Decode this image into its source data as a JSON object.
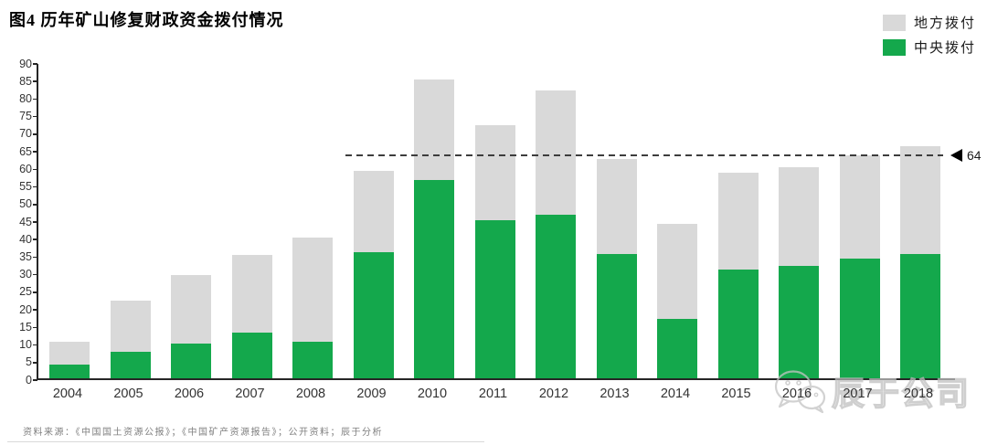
{
  "title": "图4 历年矿山修复财政资金拨付情况",
  "legend": {
    "items": [
      {
        "label": "地方拨付",
        "color": "#D9D9D9"
      },
      {
        "label": "中央拨付",
        "color": "#14A84C"
      }
    ]
  },
  "colors": {
    "local_gray": "#D9D9D9",
    "central_green": "#14A84C",
    "axis": "#262626",
    "reference_line": "#3d3d3d",
    "watermark_gray": "#bfbfbf"
  },
  "chart_data": {
    "type": "bar",
    "stacked": true,
    "title": "图4 历年矿山修复财政资金拨付情况",
    "categories": [
      "2004",
      "2005",
      "2006",
      "2007",
      "2008",
      "2009",
      "2010",
      "2011",
      "2012",
      "2013",
      "2014",
      "2015",
      "2016",
      "2017",
      "2018"
    ],
    "series": [
      {
        "name": "中央拨付",
        "color": "#14A84C",
        "values": [
          4,
          7.5,
          10,
          13,
          10.5,
          36,
          56.5,
          45,
          46.5,
          35.5,
          17,
          31,
          32,
          34,
          35.5
        ]
      },
      {
        "name": "地方拨付",
        "color": "#D9D9D9",
        "values": [
          6.5,
          14.5,
          19.5,
          22,
          29.5,
          23,
          28.5,
          27,
          35.5,
          27,
          27,
          27.5,
          28,
          29.5,
          30.5
        ]
      }
    ],
    "totals": [
      10.5,
      22,
      29.5,
      35,
      40,
      59,
      85,
      72,
      82,
      62.5,
      44,
      58.5,
      60,
      63.5,
      66
    ],
    "xlabel": "",
    "ylabel": "",
    "ylim": [
      0,
      90
    ],
    "ytick_step": 5,
    "grid": false,
    "legend_position": "top-right",
    "reference_line": {
      "value": 64,
      "label": "64",
      "style": "dashed",
      "marker": "left-arrow"
    }
  },
  "footer": {
    "source": "资料来源：《中国国土资源公报》；《中国矿产资源报告》；公开资料；辰于分析"
  },
  "watermark": {
    "text": "辰于公司",
    "logo": "wechat-icon"
  }
}
